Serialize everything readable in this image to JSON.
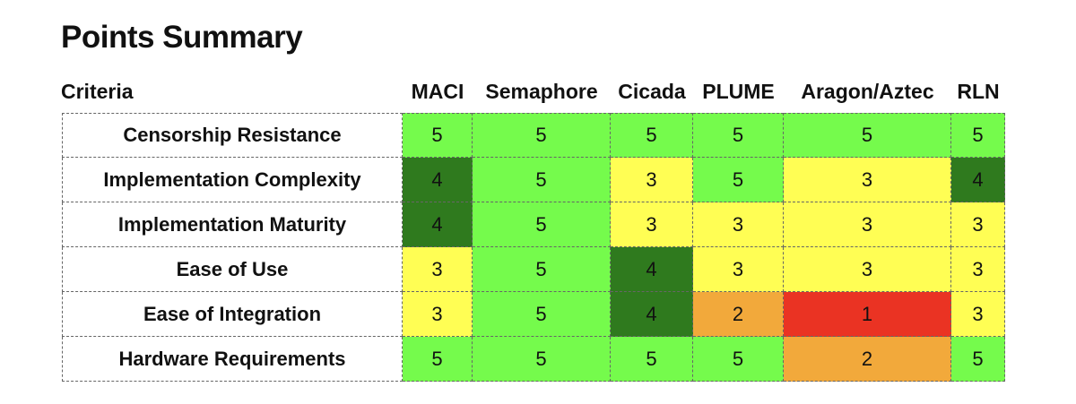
{
  "title": "Points Summary",
  "criteria_header": "Criteria",
  "columns": [
    "MACI",
    "Semaphore",
    "Cicada",
    "PLUME",
    "Aragon/Aztec",
    "RLN"
  ],
  "rows": [
    {
      "criterion": "Censorship Resistance",
      "scores": [
        "5",
        "5",
        "5",
        "5",
        "5",
        "5"
      ]
    },
    {
      "criterion": "Implementation Complexity",
      "scores": [
        "4",
        "5",
        "3",
        "5",
        "3",
        "4"
      ]
    },
    {
      "criterion": "Implementation Maturity",
      "scores": [
        "4",
        "5",
        "3",
        "3",
        "3",
        "3"
      ]
    },
    {
      "criterion": "Ease of Use",
      "scores": [
        "3",
        "5",
        "4",
        "3",
        "3",
        "3"
      ]
    },
    {
      "criterion": "Ease of Integration",
      "scores": [
        "3",
        "5",
        "4",
        "2",
        "1",
        "3"
      ]
    },
    {
      "criterion": "Hardware Requirements",
      "scores": [
        "5",
        "5",
        "5",
        "5",
        "2",
        "5"
      ]
    }
  ],
  "score_colors": {
    "1": "#ea3323",
    "2": "#f2a93b",
    "3": "#fffe54",
    "4": "#2f7a1e",
    "5": "#75fb4c"
  }
}
